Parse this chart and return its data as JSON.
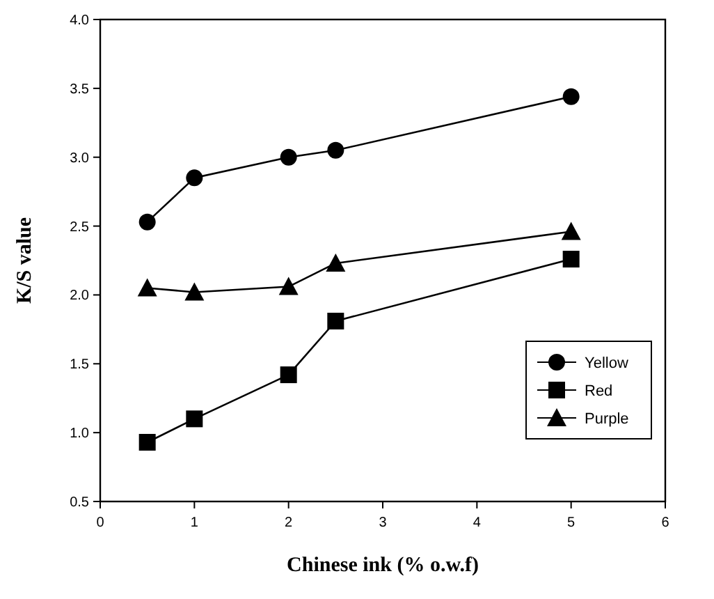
{
  "chart_data": {
    "type": "line",
    "xlabel": "Chinese ink (% o.w.f)",
    "ylabel": "K/S value",
    "x": [
      0.5,
      1,
      2,
      2.5,
      5
    ],
    "series": [
      {
        "name": "Yellow",
        "color": "#000000",
        "marker": "circle",
        "values": [
          2.53,
          2.85,
          3.0,
          3.05,
          3.44
        ]
      },
      {
        "name": "Red",
        "color": "#000000",
        "marker": "square",
        "values": [
          0.93,
          1.1,
          1.42,
          1.81,
          2.26
        ]
      },
      {
        "name": "Purple",
        "color": "#000000",
        "marker": "triangle",
        "values": [
          2.05,
          2.02,
          2.06,
          2.23,
          2.46
        ]
      }
    ],
    "xlim": [
      0,
      6
    ],
    "xticks": [
      0,
      1,
      2,
      3,
      4,
      5,
      6
    ],
    "ylim": [
      0.5,
      4.0
    ],
    "yticks": [
      {
        "value": 0.5,
        "label": "0.5"
      },
      {
        "value": 1,
        "label": "1.0"
      },
      {
        "value": 1.5,
        "label": "1.5"
      },
      {
        "value": 2,
        "label": "2.0"
      },
      {
        "value": 2.5,
        "label": "2.5"
      },
      {
        "value": 3,
        "label": "3.0"
      },
      {
        "value": 3.5,
        "label": "3.5"
      },
      {
        "value": 4,
        "label": "4.0"
      }
    ],
    "grid": false,
    "legend": "bottom right",
    "line_style": "solid"
  }
}
